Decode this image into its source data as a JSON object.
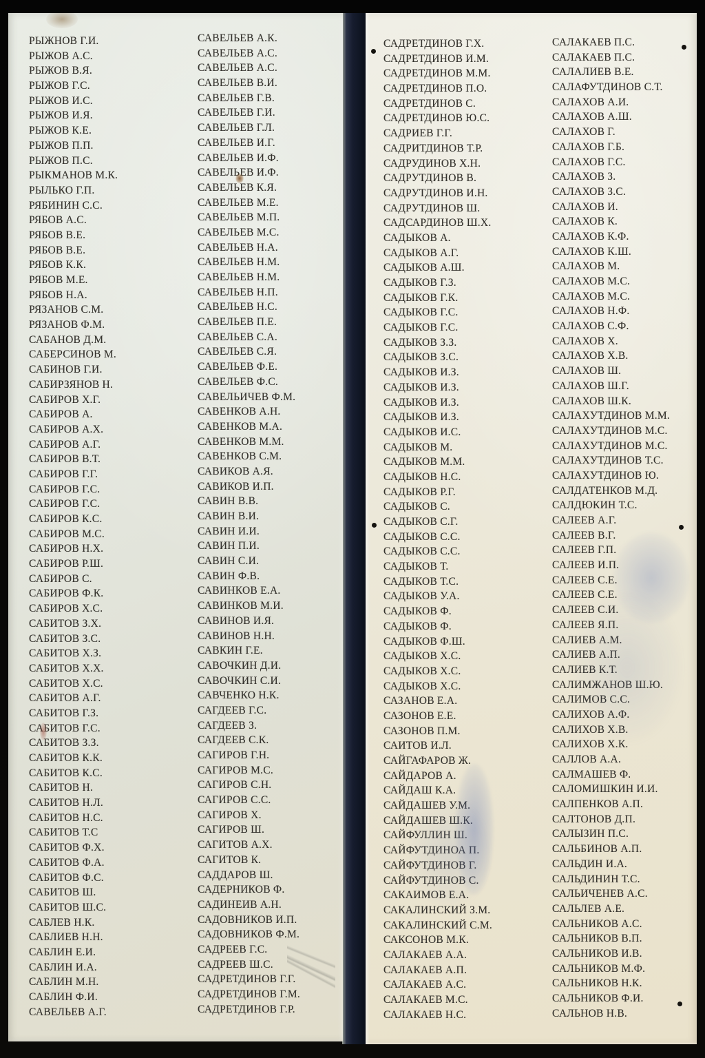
{
  "memorial": {
    "description": "Memorial plaque panels with engraved surnames and initials",
    "text_color": "#34322d",
    "left_panel_color": "#e5e8e0",
    "right_panel_color": "#ebe6d4",
    "gap_color": "#161c2e",
    "background_color": "#050505"
  },
  "panel_left": {
    "col1": [
      "РЫЖНОВ Г.И.",
      "РЫЖОВ А.С.",
      "РЫЖОВ В.Я.",
      "РЫЖОВ Г.С.",
      "РЫЖОВ И.С.",
      "РЫЖОВ И.Я.",
      "РЫЖОВ К.Е.",
      "РЫЖОВ П.П.",
      "РЫЖОВ П.С.",
      "РЫКМАНОВ М.К.",
      "РЫЛЬКО Г.П.",
      "РЯБИНИН С.С.",
      "РЯБОВ А.С.",
      "РЯБОВ В.Е.",
      "РЯБОВ В.Е.",
      "РЯБОВ К.К.",
      "РЯБОВ М.Е.",
      "РЯБОВ Н.А.",
      "РЯЗАНОВ С.М.",
      "РЯЗАНОВ Ф.М.",
      "САБАНОВ Д.М.",
      "САБЕРСИНОВ М.",
      "САБИНОВ Г.И.",
      "САБИРЗЯНОВ Н.",
      "САБИРОВ Х.Г.",
      "САБИРОВ А.",
      "САБИРОВ А.Х.",
      "САБИРОВ А.Г.",
      "САБИРОВ В.Т.",
      "САБИРОВ Г.Г.",
      "САБИРОВ Г.С.",
      "САБИРОВ Г.С.",
      "САБИРОВ К.С.",
      "САБИРОВ М.С.",
      "САБИРОВ Н.Х.",
      "САБИРОВ Р.Ш.",
      "САБИРОВ С.",
      "САБИРОВ Ф.К.",
      "САБИРОВ Х.С.",
      "САБИТОВ З.Х.",
      "САБИТОВ З.С.",
      "САБИТОВ Х.З.",
      "САБИТОВ Х.Х.",
      "САБИТОВ Х.С.",
      "САБИТОВ А.Г.",
      "САБИТОВ Г.З.",
      "САБИТОВ Г.С.",
      "САБИТОВ З.З.",
      "САБИТОВ К.К.",
      "САБИТОВ К.С.",
      "САБИТОВ Н.",
      "САБИТОВ Н.Л.",
      "САБИТОВ Н.С.",
      "САБИТОВ Т.С",
      "САБИТОВ Ф.Х.",
      "САБИТОВ Ф.А.",
      "САБИТОВ Ф.С.",
      "САБИТОВ Ш.",
      "САБИТОВ Ш.С.",
      "САБЛЕВ Н.К.",
      "САБЛИЕВ Н.Н.",
      "САБЛИН Е.И.",
      "САБЛИН И.А.",
      "САБЛИН М.Н.",
      "САБЛИН Ф.И.",
      "САВЕЛЬЕВ А.Г."
    ],
    "col2": [
      "САВЕЛЬЕВ А.К.",
      "САВЕЛЬЕВ А.С.",
      "САВЕЛЬЕВ А.С.",
      "САВЕЛЬЕВ В.И.",
      "САВЕЛЬЕВ Г.В.",
      "САВЕЛЬЕВ Г.И.",
      "САВЕЛЬЕВ Г.Л.",
      "САВЕЛЬЕВ И.Г.",
      "САВЕЛЬЕВ И.Ф.",
      "САВЕЛЬЕВ И.Ф.",
      "САВЕЛЬЕВ К.Я.",
      "САВЕЛЬЕВ М.Е.",
      "САВЕЛЬЕВ М.П.",
      "САВЕЛЬЕВ М.С.",
      "САВЕЛЬЕВ Н.А.",
      "САВЕЛЬЕВ Н.М.",
      "САВЕЛЬЕВ Н.М.",
      "САВЕЛЬЕВ Н.П.",
      "САВЕЛЬЕВ Н.С.",
      "САВЕЛЬЕВ П.Е.",
      "САВЕЛЬЕВ С.А.",
      "САВЕЛЬЕВ С.Я.",
      "САВЕЛЬЕВ Ф.Е.",
      "САВЕЛЬЕВ Ф.С.",
      "САВЕЛЬИЧЕВ Ф.М.",
      "САВЕНКОВ А.Н.",
      "САВЕНКОВ М.А.",
      "САВЕНКОВ М.М.",
      "САВЕНКОВ С.М.",
      "САВИКОВ А.Я.",
      "САВИКОВ И.П.",
      "САВИН В.В.",
      "САВИН В.И.",
      "САВИН И.И.",
      "САВИН П.И.",
      "САВИН С.И.",
      "САВИН Ф.В.",
      "САВИНКОВ Е.А.",
      "САВИНКОВ М.И.",
      "САВИНОВ И.Я.",
      "САВИНОВ Н.Н.",
      "САВКИН Г.Е.",
      "САВОЧКИН Д.И.",
      "САВОЧКИН С.И.",
      "САВЧЕНКО Н.К.",
      "САГДЕЕВ Г.С.",
      "САГДЕЕВ З.",
      "САГДЕЕВ С.К.",
      "САГИРОВ Г.Н.",
      "САГИРОВ М.С.",
      "САГИРОВ С.Н.",
      "САГИРОВ С.С.",
      "САГИРОВ Х.",
      "САГИРОВ Ш.",
      "САГИТОВ А.Х.",
      "САГИТОВ К.",
      "САДДАРОВ Ш.",
      "САДЕРНИКОВ Ф.",
      "САДИНЕИВ А.Н.",
      "САДОВНИКОВ И.П.",
      "САДОВНИКОВ Ф.М.",
      "САДРЕЕВ Г.С.",
      "САДРЕЕВ Ш.С.",
      "САДРЕТДИНОВ Г.Г.",
      "САДРЕТДИНОВ Г.М.",
      "САДРЕТДИНОВ Г.Р."
    ]
  },
  "panel_right": {
    "col1": [
      "САДРЕТДИНОВ Г.Х.",
      "САДРЕТДИНОВ И.М.",
      "САДРЕТДИНОВ М.М.",
      "САДРЕТДИНОВ П.О.",
      "САДРЕТДИНОВ С.",
      "САДРЕТДИНОВ Ю.С.",
      "САДРИЕВ Г.Г.",
      "САДРИТДИНОВ Т.Р.",
      "САДРУДИНОВ Х.Н.",
      "САДРУТДИНОВ В.",
      "САДРУТДИНОВ И.Н.",
      "САДРУТДИНОВ Ш.",
      "САДСАРДИНОВ Ш.Х.",
      "САДЫКОВ А.",
      "САДЫКОВ А.Г.",
      "САДЫКОВ А.Ш.",
      "САДЫКОВ Г.З.",
      "САДЫКОВ Г.К.",
      "САДЫКОВ Г.С.",
      "САДЫКОВ Г.С.",
      "САДЫКОВ З.З.",
      "САДЫКОВ З.С.",
      "САДЫКОВ И.З.",
      "САДЫКОВ И.З.",
      "САДЫКОВ И.З.",
      "САДЫКОВ И.З.",
      "САДЫКОВ И.С.",
      "САДЫКОВ М.",
      "САДЫКОВ М.М.",
      "САДЫКОВ Н.С.",
      "САДЫКОВ Р.Г.",
      "САДЫКОВ С.",
      "САДЫКОВ С.Г.",
      "САДЫКОВ С.С.",
      "САДЫКОВ С.С.",
      "САДЫКОВ Т.",
      "САДЫКОВ Т.С.",
      "САДЫКОВ У.А.",
      "САДЫКОВ Ф.",
      "САДЫКОВ Ф.",
      "САДЫКОВ Ф.Ш.",
      "САДЫКОВ Х.С.",
      "САДЫКОВ Х.С.",
      "САДЫКОВ Х.С.",
      "САЗАНОВ Е.А.",
      "САЗОНОВ Е.Е.",
      "САЗОНОВ П.М.",
      "САИТОВ И.Л.",
      "САЙГАФАРОВ Ж.",
      "САЙДАРОВ А.",
      "САЙДАШ К.А.",
      "САЙДАШЕВ У.М.",
      "САЙДАШЕВ Ш.К.",
      "САЙФУЛЛИН Ш.",
      "САЙФУТДИНОА П.",
      "САЙФУТДИНОВ Г.",
      "САЙФУТДИНОВ С.",
      "САКАИМОВ Е.А.",
      "САКАЛИНСКИЙ З.М.",
      "САКАЛИНСКИЙ С.М.",
      "САКСОНОВ М.К.",
      "САЛАКАЕВ А.А.",
      "САЛАКАЕВ А.П.",
      "САЛАКАЕВ А.С.",
      "САЛАКАЕВ М.С.",
      "САЛАКАЕВ Н.С."
    ],
    "col2": [
      "САЛАКАЕВ П.С.",
      "САЛАКАЕВ П.С.",
      "САЛАЛИЕВ В.Е.",
      "САЛАФУТДИНОВ С.Т.",
      "САЛАХОВ А.И.",
      "САЛАХОВ А.Ш.",
      "САЛАХОВ Г.",
      "САЛАХОВ Г.Б.",
      "САЛАХОВ Г.С.",
      "САЛАХОВ З.",
      "САЛАХОВ З.С.",
      "САЛАХОВ И.",
      "САЛАХОВ К.",
      "САЛАХОВ К.Ф.",
      "САЛАХОВ К.Ш.",
      "САЛАХОВ М.",
      "САЛАХОВ М.С.",
      "САЛАХОВ М.С.",
      "САЛАХОВ Н.Ф.",
      "САЛАХОВ С.Ф.",
      "САЛАХОВ Х.",
      "САЛАХОВ Х.В.",
      "САЛАХОВ Ш.",
      "САЛАХОВ Ш.Г.",
      "САЛАХОВ Ш.К.",
      "САЛАХУТДИНОВ М.М.",
      "САЛАХУТДИНОВ М.С.",
      "САЛАХУТДИНОВ М.С.",
      "САЛАХУТДИНОВ Т.С.",
      "САЛАХУТДИНОВ Ю.",
      "САЛДАТЕНКОВ М.Д.",
      "САЛДЮКИН Т.С.",
      "САЛЕЕВ А.Г.",
      "САЛЕЕВ В.Г.",
      "САЛЕЕВ Г.П.",
      "САЛЕЕВ И.П.",
      "САЛЕЕВ С.Е.",
      "САЛЕЕВ С.Е.",
      "САЛЕЕВ С.И.",
      "САЛЕЕВ Я.П.",
      "САЛИЕВ А.М.",
      "САЛИЕВ А.П.",
      "САЛИЕВ К.Т.",
      "САЛИМЖАНОВ Ш.Ю.",
      "САЛИМОВ С.С.",
      "САЛИХОВ А.Ф.",
      "САЛИХОВ Х.В.",
      "САЛИХОВ Х.К.",
      "САЛЛОВ А.А.",
      "САЛМАШЕВ Ф.",
      "САЛОМИШКИН И.И.",
      "САЛПЕНКОВ А.П.",
      "САЛТОНОВ Д.П.",
      "САЛЫЗИН П.С.",
      "САЛЬБИНОВ А.П.",
      "САЛЬДИН И.А.",
      "САЛЬДИНИН Т.С.",
      "САЛЬИЧЕНЕВ А.С.",
      "САЛЬЛЕВ А.Е.",
      "САЛЬНИКОВ А.С.",
      "САЛЬНИКОВ В.П.",
      "САЛЬНИКОВ И.В.",
      "САЛЬНИКОВ М.Ф.",
      "САЛЬНИКОВ Н.К.",
      "САЛЬНИКОВ Ф.И.",
      "САЛЬНОВ Н.В."
    ]
  }
}
